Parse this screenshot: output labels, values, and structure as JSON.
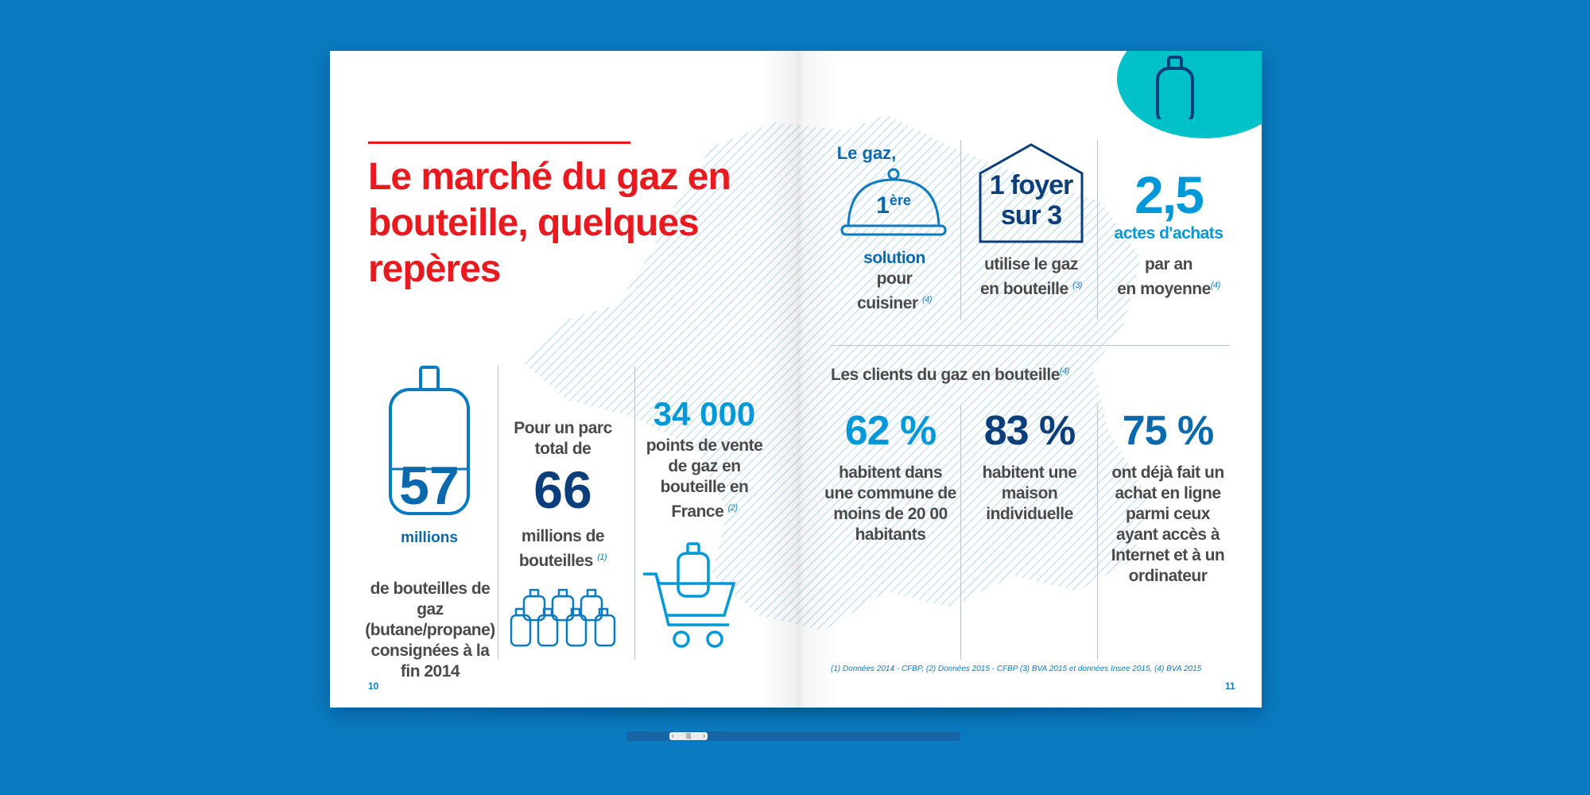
{
  "title": "Le marché du gaz en bouteille, quelques repères",
  "left": {
    "stat1": {
      "number": "57",
      "unit": "millions",
      "text": "de bouteilles de gaz (butane/propane) consignées à la fin 2014"
    },
    "stat2": {
      "intro": "Pour un parc total de",
      "number": "66",
      "text": "millions de bouteilles",
      "ref": "(1)"
    },
    "stat3": {
      "number": "34 000",
      "text": "points de vente de gaz en bouteille en France",
      "ref": "(2)"
    }
  },
  "right": {
    "top1": {
      "top": "Le gaz,",
      "center_num": "1",
      "center_sup": "ère",
      "line1": "solution",
      "line2": "pour",
      "line3": "cuisiner",
      "ref": "(4)"
    },
    "top2": {
      "house_line1": "1 foyer",
      "house_line2": "sur 3",
      "line1": "utilise le gaz",
      "line2": "en bouteille",
      "ref": "(3)"
    },
    "top3": {
      "number": "2,5",
      "sub": "actes d'achats",
      "line1": "par an",
      "line2": "en moyenne",
      "ref": "(4)"
    },
    "clients_heading": "Les clients du gaz en bouteille",
    "clients_ref": "(4)",
    "clients": [
      {
        "pct": "62 %",
        "text": "habitent dans une commune de moins de 20 00 habitants"
      },
      {
        "pct": "83 %",
        "text": "habitent une maison individuelle"
      },
      {
        "pct": "75 %",
        "text": "ont déjà fait un achat en ligne parmi ceux ayant accès à Internet et à un ordinateur"
      }
    ],
    "footnote": "(1) Données 2014 - CFBP, (2) Données 2015 - CFBP (3) BVA 2015 et données Insee 2015, (4) BVA 2015"
  },
  "pages": {
    "left": "10",
    "right": "11"
  },
  "colors": {
    "background": "#0a7bc1",
    "red": "#e8191f",
    "navy": "#0b3e7a",
    "blue": "#0098d8",
    "teal": "#00c0c8"
  },
  "icons": [
    "gas-bottle-icon",
    "bottle-group-icon",
    "shopping-cart-icon",
    "cloche-icon",
    "house-icon"
  ],
  "scrollbar": {
    "thumb_label": "|||"
  }
}
